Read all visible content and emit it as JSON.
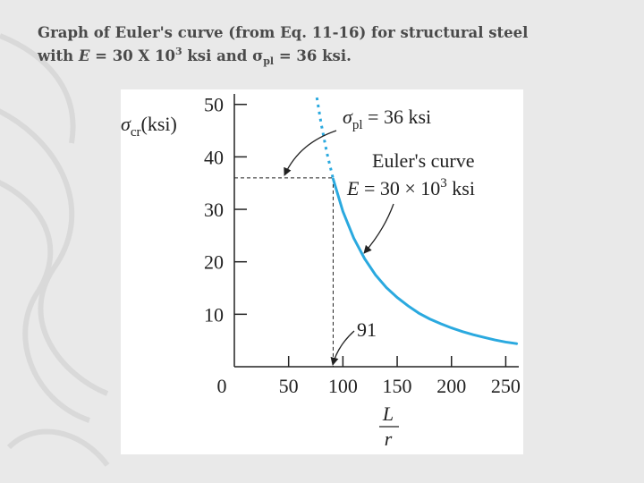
{
  "chart_data": {
    "type": "line",
    "title": [
      "Graph of Euler's curve (from Eq. 11-16) for structural steel",
      [
        "with ",
        "E",
        " = 30 X 10",
        "3",
        " ksi and ",
        "σ",
        "pl",
        " = 36 ksi."
      ]
    ],
    "y_label": [
      "σ",
      "cr",
      "(ksi)"
    ],
    "x_label": [
      "L",
      "r"
    ],
    "series": [
      {
        "style": "dotted",
        "color": "#2aa9df",
        "x": [
          76,
          80,
          85,
          91
        ],
        "values": [
          51.3,
          46.3,
          41.0,
          35.8
        ]
      },
      {
        "style": "solid",
        "color": "#2aa9df",
        "x": [
          91,
          100,
          110,
          120,
          130,
          140,
          150,
          160,
          170,
          180,
          190,
          200,
          210,
          220,
          230,
          240,
          250,
          260
        ],
        "values": [
          35.8,
          29.6,
          24.5,
          20.6,
          17.5,
          15.1,
          13.2,
          11.6,
          10.2,
          9.1,
          8.2,
          7.4,
          6.7,
          6.1,
          5.6,
          5.1,
          4.7,
          4.4
        ]
      }
    ],
    "proportional_limit": {
      "value": 36,
      "label": [
        "σ",
        "pl",
        " = 36 ksi"
      ]
    },
    "slenderness_limit": {
      "value": 91,
      "label": "91"
    },
    "curve_label": [
      "Euler's curve",
      "E",
      " = 30 × 10",
      "3",
      " ksi"
    ],
    "xlim": [
      0,
      262
    ],
    "ylim": [
      0,
      52
    ],
    "xticks": [
      0,
      50,
      100,
      150,
      200,
      250
    ],
    "yticks": [
      10,
      20,
      30,
      40,
      50
    ]
  }
}
